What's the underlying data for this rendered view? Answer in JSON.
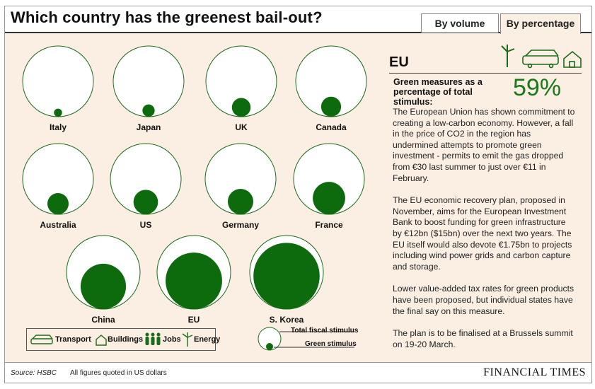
{
  "header": {
    "title": "Which country has the greenest bail-out?"
  },
  "tabs": [
    {
      "label": "By volume",
      "active": false
    },
    {
      "label": "By percentage",
      "active": true
    }
  ],
  "chart_data": {
    "type": "bubble",
    "title": "Which country has the greenest bail-out?",
    "measure": "Green stimulus as a share of total fiscal stimulus",
    "countries": [
      "Italy",
      "Japan",
      "UK",
      "Canada",
      "Australia",
      "US",
      "Germany",
      "France",
      "China",
      "EU",
      "S. Korea"
    ],
    "green_pct": [
      1.3,
      3,
      7,
      8,
      9,
      12,
      13,
      21,
      38,
      59,
      81
    ],
    "colors": {
      "outline": "#1a6b1a",
      "fill": "#0d6b0d",
      "background": "#fbeee2"
    }
  },
  "detail": {
    "heading": "EU",
    "stat_label": "Green measures as a percentage of total stimulus:",
    "stat_value": "59%",
    "paragraphs": [
      "The European Union has shown commitment to creating a low-carbon economy. However, a fall in the price of CO2 in the region has undermined attempts to promote green investment - permits to emit the gas dropped from €30 last summer to just over €11 in February.",
      "The EU economic recovery plan, proposed in November, aims for the European Investment Bank to boost funding for green infrastructure by €12bn ($15bn) over the next two years. The EU itself would also devote €1.75bn to projects including wind power grids and carbon capture and storage.",
      "Lower value-added tax rates for green products have been proposed, but individual states have the final say on this measure.",
      "The plan is to be finalised at a Brussels summit on 19-20 March."
    ]
  },
  "legend": {
    "transport": "Transport",
    "buildings": "Buildings",
    "jobs": "Jobs",
    "energy": "Energy",
    "total": "Total fiscal stimulus",
    "green": "Green stimulus"
  },
  "footer": {
    "source": "Source: HSBC",
    "note": "All figures quoted in US dollars",
    "brand": "FINANCIAL TIMES"
  }
}
